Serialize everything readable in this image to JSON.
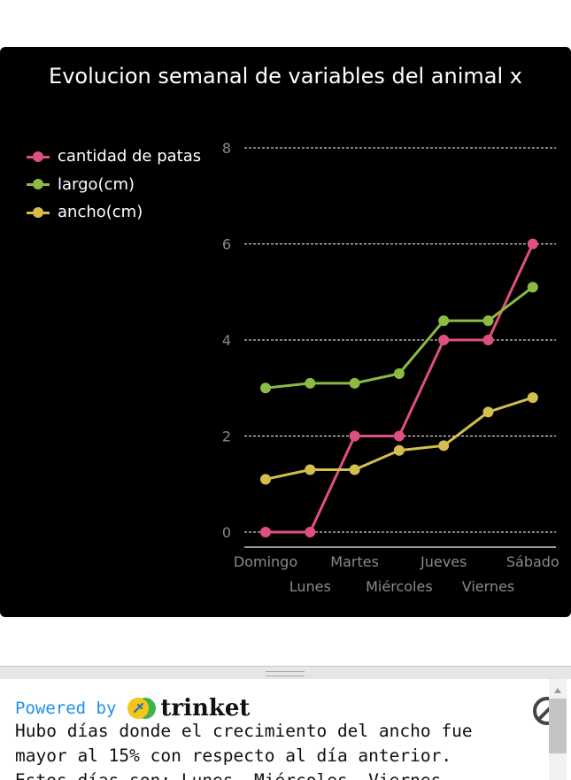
{
  "chart_data": {
    "type": "line",
    "title": "Evolucion semanal de variables del animal x",
    "categories": [
      "Domingo",
      "Lunes",
      "Martes",
      "Miércoles",
      "Jueves",
      "Viernes",
      "Sábado"
    ],
    "series": [
      {
        "name": "cantidad de patas",
        "color": "#e0507f",
        "values": [
          0,
          0,
          2,
          2,
          4,
          4,
          6
        ]
      },
      {
        "name": "largo(cm)",
        "color": "#8cba42",
        "values": [
          3,
          3.1,
          3.1,
          3.3,
          4.4,
          4.4,
          5.1
        ]
      },
      {
        "name": "ancho(cm)",
        "color": "#d4be4e",
        "values": [
          1.1,
          1.3,
          1.3,
          1.7,
          1.8,
          2.5,
          2.8
        ]
      }
    ],
    "ylim": [
      0,
      8
    ],
    "yticks": [
      0,
      2,
      4,
      6,
      8
    ],
    "xlabel": "",
    "ylabel": "",
    "grid": true,
    "legend": "top-left"
  },
  "console": {
    "powered_label": "Powered by",
    "brand": "trinket",
    "output_text": "Hubo días donde el crecimiento del ancho fue mayor al 15% con respecto al día anterior.\nEstos días son: Lunes, Miércoles, Viernes"
  }
}
